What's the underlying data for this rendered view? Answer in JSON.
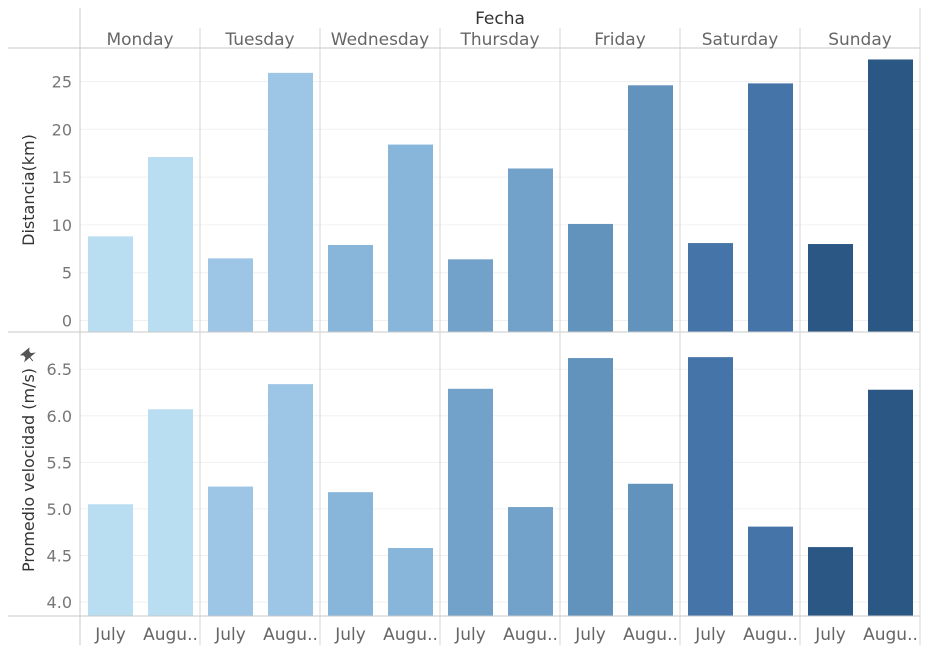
{
  "chart_data": {
    "type": "bar",
    "title": "Fecha",
    "days": [
      "Monday",
      "Tuesday",
      "Wednesday",
      "Thursday",
      "Friday",
      "Saturday",
      "Sunday"
    ],
    "month_labels": [
      "July",
      "Augu.."
    ],
    "colors": [
      "#b9ddf1",
      "#9dc5e6",
      "#88b6da",
      "#72a2c9",
      "#6293bd",
      "#4574a8",
      "#2a5783"
    ],
    "panels": [
      {
        "ylabel": "Distancia(km)",
        "ylim": [
          -1.2,
          28.5
        ],
        "ticks": [
          0,
          5,
          10,
          15,
          20,
          25
        ],
        "series": [
          {
            "name": "July",
            "values": [
              8.8,
              6.5,
              7.9,
              6.4,
              10.1,
              8.1,
              8.0
            ]
          },
          {
            "name": "August",
            "values": [
              17.1,
              25.9,
              18.4,
              15.9,
              24.6,
              24.8,
              27.3
            ]
          }
        ]
      },
      {
        "ylabel": "Promedio velocidad (m/s)",
        "pin_icon": "pin-icon",
        "ylim": [
          3.85,
          6.9
        ],
        "ticks": [
          4.0,
          4.5,
          5.0,
          5.5,
          6.0,
          6.5
        ],
        "tick_labels": [
          "4.0",
          "4.5",
          "5.0",
          "5.5",
          "6.0",
          "6.5"
        ],
        "series": [
          {
            "name": "July",
            "values": [
              5.05,
              5.24,
              5.18,
              6.29,
              6.62,
              6.63,
              4.59
            ]
          },
          {
            "name": "August",
            "values": [
              6.07,
              6.34,
              4.58,
              5.02,
              5.27,
              4.81,
              6.28
            ]
          }
        ]
      }
    ],
    "grid": true,
    "legend": "none"
  }
}
